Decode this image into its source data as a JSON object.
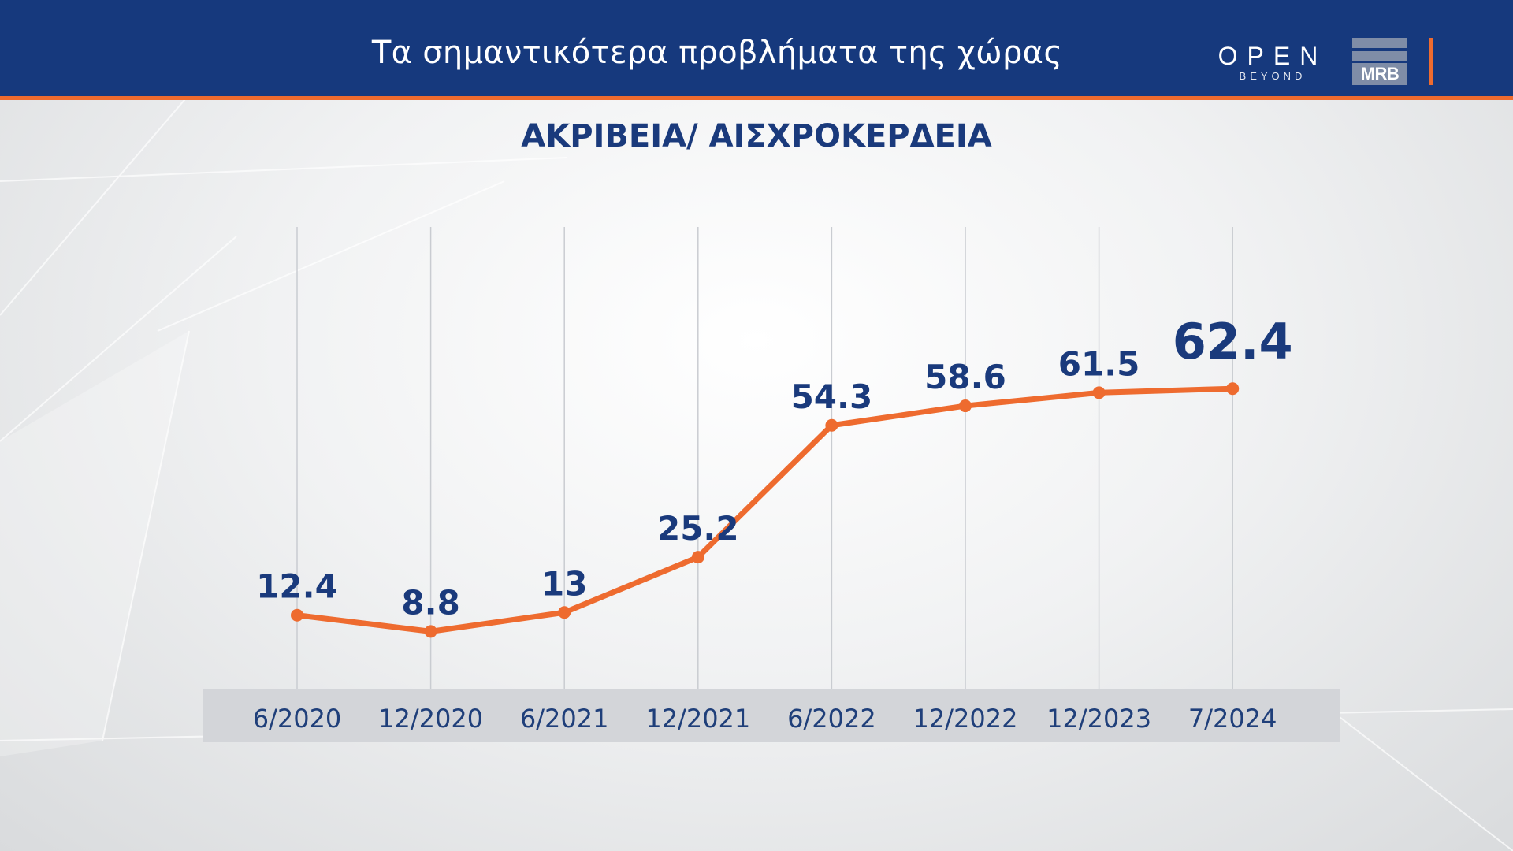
{
  "header": {
    "title": "Τα σημαντικότερα προβλήματα της χώρας",
    "open_logo": {
      "wordmark": "OPEN",
      "tagline": "BEYOND"
    },
    "mrb_logo": {
      "text": "MRB"
    }
  },
  "colors": {
    "header_bg": "#16397d",
    "accent": "#ee6b2f",
    "label_color": "#1a3a7c",
    "axis_text": "#1f3f7a"
  },
  "chart_data": {
    "type": "line",
    "title": "ΑΚΡΙΒΕΙΑ/ ΑΙΣΧΡΟΚΕΡΔΕΙΑ",
    "categories": [
      "6/2020",
      "12/2020",
      "6/2021",
      "12/2021",
      "6/2022",
      "12/2022",
      "12/2023",
      "7/2024"
    ],
    "series": [
      {
        "values": [
          12.4,
          8.8,
          13,
          25.2,
          54.3,
          58.6,
          61.5,
          62.4
        ]
      }
    ],
    "data_labels": [
      "12.4",
      "8.8",
      "13",
      "25.2",
      "54.3",
      "58.6",
      "61.5",
      "62.4"
    ],
    "ylim": [
      0,
      80
    ],
    "grid": "vertical gridlines",
    "legend": "none",
    "line_color": "#ee6b2f"
  }
}
